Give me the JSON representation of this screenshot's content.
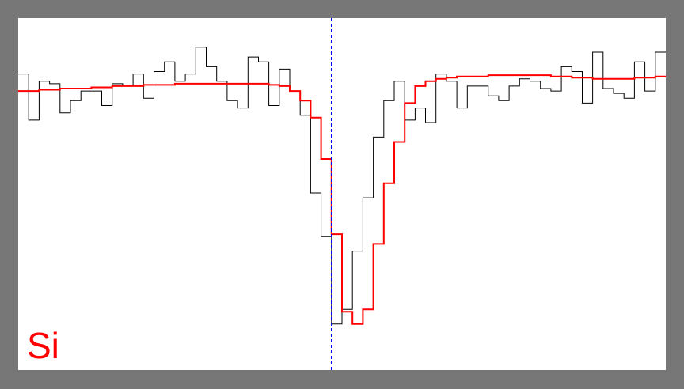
{
  "chart_data": {
    "type": "line",
    "label": "Si",
    "xlim": [
      0,
      62
    ],
    "ylim": [
      -0.15,
      1.3
    ],
    "grid": false,
    "reference_x": 30,
    "series": [
      {
        "style": "steps",
        "color": "#000000",
        "values": [
          1.07,
          0.88,
          1.04,
          1.03,
          0.91,
          0.96,
          1.0,
          1.0,
          0.94,
          1.03,
          1.02,
          1.07,
          0.97,
          1.08,
          1.12,
          1.04,
          1.07,
          1.18,
          1.1,
          1.04,
          0.96,
          0.93,
          1.14,
          1.12,
          0.94,
          1.09,
          1.0,
          0.9,
          0.58,
          0.4,
          0.04,
          0.1,
          0.34,
          0.56,
          0.81,
          0.96,
          1.04,
          0.88,
          0.93,
          0.87,
          1.07,
          1.04,
          0.93,
          1.02,
          1.02,
          0.98,
          0.96,
          1.02,
          1.05,
          1.04,
          1.01,
          1.0,
          1.1,
          1.08,
          0.95,
          1.16,
          1.01,
          0.99,
          0.97,
          1.12,
          1.0,
          1.16
        ]
      },
      {
        "style": "steps",
        "color": "#ff0000",
        "values": [
          1.0,
          1.0,
          1.005,
          1.005,
          1.01,
          1.01,
          1.01,
          1.015,
          1.015,
          1.02,
          1.02,
          1.02,
          1.025,
          1.025,
          1.025,
          1.03,
          1.03,
          1.03,
          1.03,
          1.03,
          1.03,
          1.03,
          1.03,
          1.03,
          1.025,
          1.02,
          1.0,
          0.96,
          0.89,
          0.72,
          0.41,
          0.09,
          0.04,
          0.1,
          0.37,
          0.62,
          0.79,
          0.95,
          1.02,
          1.04,
          1.05,
          1.055,
          1.06,
          1.06,
          1.06,
          1.065,
          1.065,
          1.065,
          1.065,
          1.065,
          1.065,
          1.06,
          1.06,
          1.055,
          1.055,
          1.05,
          1.05,
          1.05,
          1.05,
          1.055,
          1.055,
          1.06
        ]
      }
    ]
  }
}
